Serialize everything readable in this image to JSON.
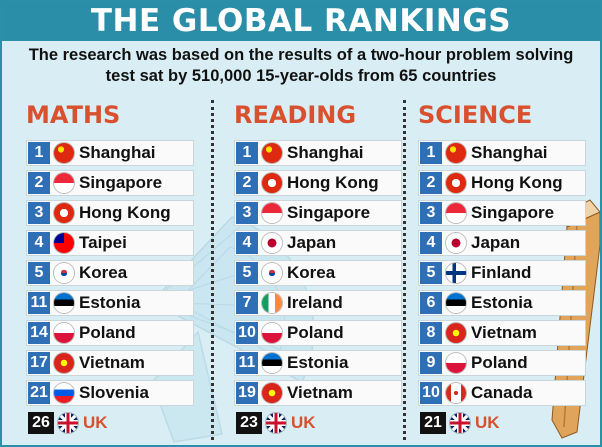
{
  "title": "THE GLOBAL RANKINGS",
  "subtitle": {
    "line1": "The research was based on the results of a two-hour problem solving",
    "line2": "test sat by 510,000 15-year-olds from 65 countries"
  },
  "columns": [
    {
      "title": "MATHS",
      "rows": [
        {
          "rank": "1",
          "name": "Shanghai",
          "flag": "china-flag-icon"
        },
        {
          "rank": "2",
          "name": "Singapore",
          "flag": "singapore-flag-icon"
        },
        {
          "rank": "3",
          "name": "Hong Kong",
          "flag": "hong-kong-flag-icon"
        },
        {
          "rank": "4",
          "name": "Taipei",
          "flag": "taiwan-flag-icon"
        },
        {
          "rank": "5",
          "name": "Korea",
          "flag": "korea-flag-icon"
        },
        {
          "rank": "11",
          "name": "Estonia",
          "flag": "estonia-flag-icon"
        },
        {
          "rank": "14",
          "name": "Poland",
          "flag": "poland-flag-icon"
        },
        {
          "rank": "17",
          "name": "Vietnam",
          "flag": "vietnam-flag-icon"
        },
        {
          "rank": "21",
          "name": "Slovenia",
          "flag": "slovenia-flag-icon"
        },
        {
          "rank": "26",
          "name": "UK",
          "flag": "uk-flag-icon"
        }
      ]
    },
    {
      "title": "READING",
      "rows": [
        {
          "rank": "1",
          "name": "Shanghai",
          "flag": "china-flag-icon"
        },
        {
          "rank": "2",
          "name": "Hong Kong",
          "flag": "hong-kong-flag-icon"
        },
        {
          "rank": "3",
          "name": "Singapore",
          "flag": "singapore-flag-icon"
        },
        {
          "rank": "4",
          "name": "Japan",
          "flag": "japan-flag-icon"
        },
        {
          "rank": "5",
          "name": "Korea",
          "flag": "korea-flag-icon"
        },
        {
          "rank": "7",
          "name": "Ireland",
          "flag": "ireland-flag-icon"
        },
        {
          "rank": "10",
          "name": "Poland",
          "flag": "poland-flag-icon"
        },
        {
          "rank": "11",
          "name": "Estonia",
          "flag": "estonia-flag-icon"
        },
        {
          "rank": "19",
          "name": "Vietnam",
          "flag": "vietnam-flag-icon"
        },
        {
          "rank": "23",
          "name": "UK",
          "flag": "uk-flag-icon"
        }
      ]
    },
    {
      "title": "SCIENCE",
      "rows": [
        {
          "rank": "1",
          "name": "Shanghai",
          "flag": "china-flag-icon"
        },
        {
          "rank": "2",
          "name": "Hong Kong",
          "flag": "hong-kong-flag-icon"
        },
        {
          "rank": "3",
          "name": "Singapore",
          "flag": "singapore-flag-icon"
        },
        {
          "rank": "4",
          "name": "Japan",
          "flag": "japan-flag-icon"
        },
        {
          "rank": "5",
          "name": "Finland",
          "flag": "finland-flag-icon"
        },
        {
          "rank": "6",
          "name": "Estonia",
          "flag": "estonia-flag-icon"
        },
        {
          "rank": "8",
          "name": "Vietnam",
          "flag": "vietnam-flag-icon"
        },
        {
          "rank": "9",
          "name": "Poland",
          "flag": "poland-flag-icon"
        },
        {
          "rank": "10",
          "name": "Canada",
          "flag": "canada-flag-icon"
        },
        {
          "rank": "21",
          "name": "UK",
          "flag": "uk-flag-icon"
        }
      ]
    }
  ],
  "colors": {
    "title_bar": "#2b8ea8",
    "background": "#d8eef4",
    "column_title": "#d9502e",
    "rank_badge": "#2e6fb6",
    "uk_rank_badge": "#111111",
    "uk_name": "#d9502e"
  }
}
